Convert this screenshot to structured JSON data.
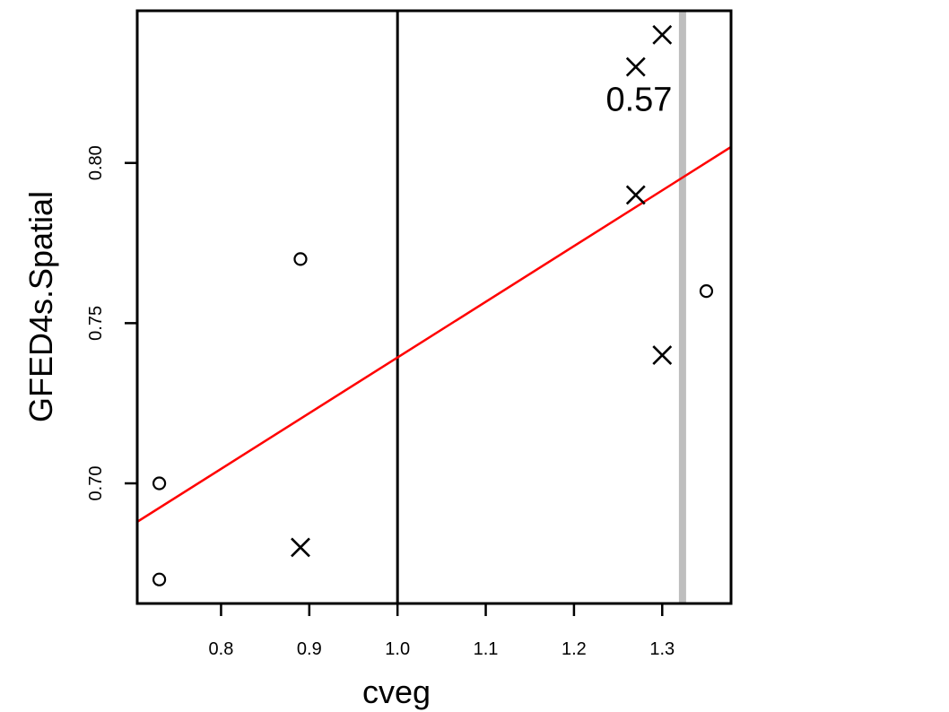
{
  "chart_data": {
    "type": "scatter",
    "title": "",
    "xlabel": "cveg",
    "ylabel": "GFED4s.Spatial",
    "xlim": [
      0.705,
      1.378
    ],
    "ylim": [
      0.6625,
      0.8475
    ],
    "x_ticks": [
      0.8,
      0.9,
      1.0,
      1.1,
      1.2,
      1.3
    ],
    "x_tick_labels": [
      "0.8",
      "0.9",
      "1.0",
      "1.1",
      "1.2",
      "1.3"
    ],
    "y_ticks": [
      0.7,
      0.75,
      0.8
    ],
    "y_tick_labels": [
      "0.70",
      "0.75",
      "0.80"
    ],
    "grid": false,
    "series": [
      {
        "marker": "circle",
        "points": [
          {
            "x": 0.73,
            "y": 0.67
          },
          {
            "x": 0.73,
            "y": 0.7
          },
          {
            "x": 0.89,
            "y": 0.77
          },
          {
            "x": 1.35,
            "y": 0.76
          }
        ]
      },
      {
        "marker": "cross",
        "points": [
          {
            "x": 0.89,
            "y": 0.68
          },
          {
            "x": 1.27,
            "y": 0.79
          },
          {
            "x": 1.3,
            "y": 0.74
          },
          {
            "x": 1.27,
            "y": 0.83
          },
          {
            "x": 1.3,
            "y": 0.84
          }
        ]
      }
    ],
    "reference_lines": [
      {
        "orientation": "vertical",
        "x": 1.0,
        "color": "#000000"
      },
      {
        "orientation": "vertical",
        "x": 1.323,
        "color": "#bebebe"
      }
    ],
    "regression_line": {
      "color": "#ff0000",
      "points": [
        {
          "x": 0.705,
          "y": 0.688
        },
        {
          "x": 1.378,
          "y": 0.805
        }
      ]
    },
    "annotation": {
      "text": "0.57",
      "x": 1.29,
      "y": 0.823
    }
  }
}
